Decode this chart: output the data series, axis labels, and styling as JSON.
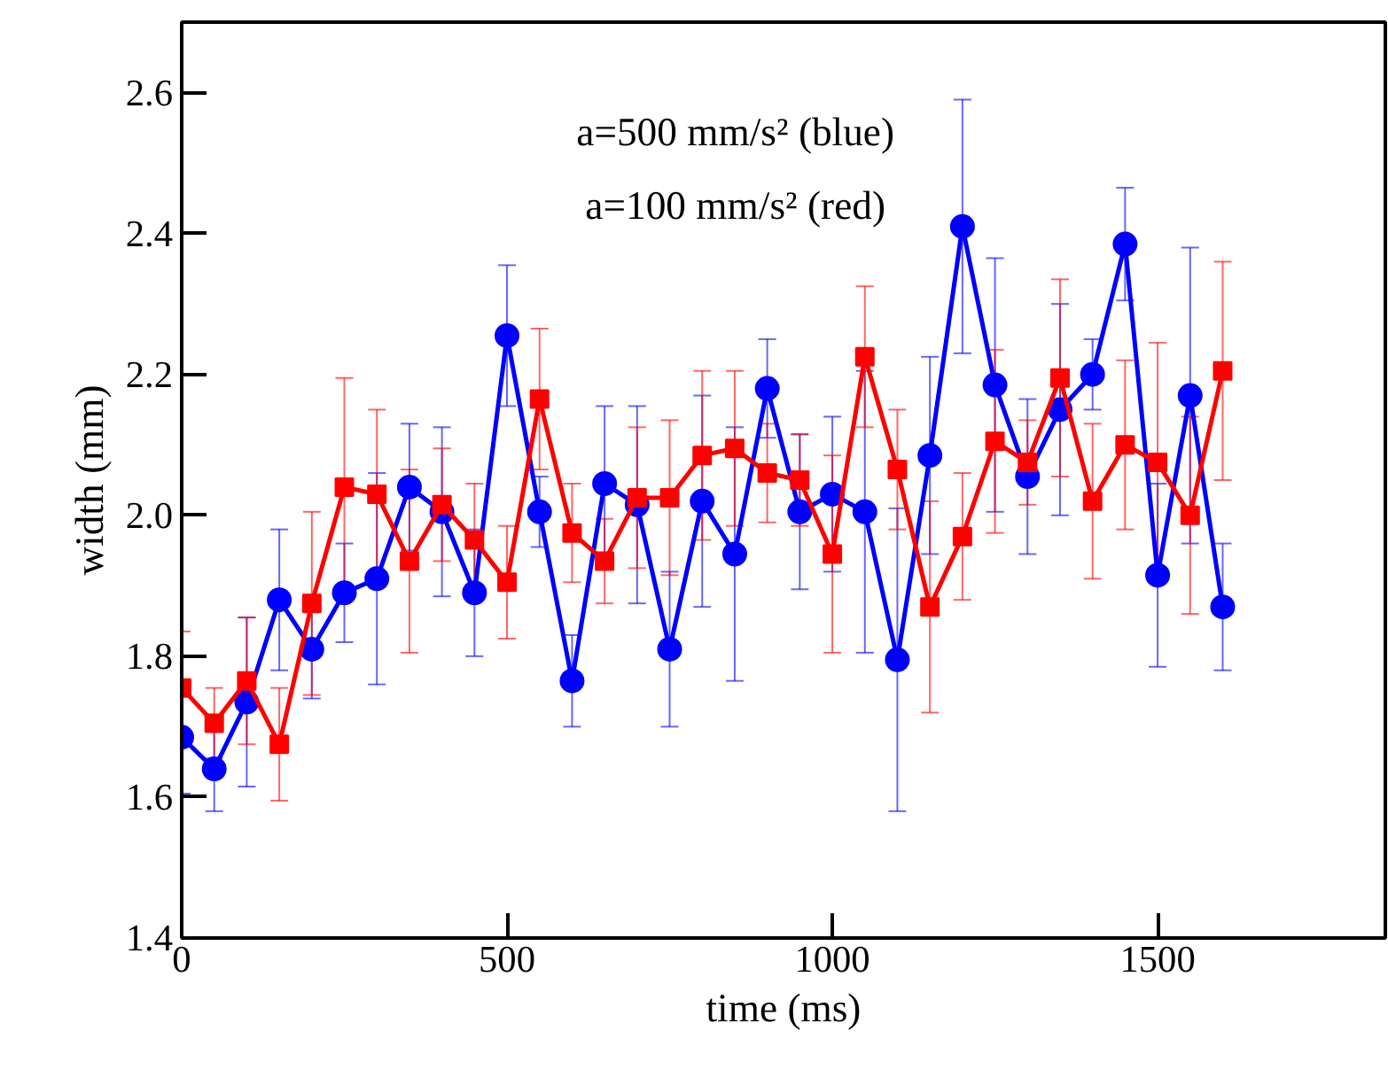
{
  "chart_data": {
    "type": "line",
    "xlabel": "time (ms)",
    "ylabel": "width (mm)",
    "x": [
      0,
      50,
      100,
      150,
      200,
      250,
      300,
      350,
      400,
      450,
      500,
      550,
      600,
      650,
      700,
      750,
      800,
      850,
      900,
      950,
      1000,
      1050,
      1100,
      1150,
      1200,
      1250,
      1300,
      1350,
      1400,
      1450,
      1500,
      1550,
      1600
    ],
    "series": [
      {
        "color": "#0000ff",
        "marker": "circle",
        "values": [
          1.685,
          1.64,
          1.735,
          1.88,
          1.81,
          1.89,
          1.91,
          2.04,
          2.005,
          1.89,
          2.255,
          2.005,
          1.765,
          2.045,
          2.015,
          1.81,
          2.02,
          1.945,
          2.18,
          2.005,
          2.03,
          2.005,
          1.795,
          2.085,
          2.41,
          2.185,
          2.055,
          2.15,
          2.2,
          2.385,
          1.915,
          2.17,
          1.87
        ],
        "errors": [
          0.08,
          0.06,
          0.12,
          0.1,
          0.07,
          0.07,
          0.15,
          0.09,
          0.12,
          0.09,
          0.1,
          0.05,
          0.065,
          0.11,
          0.14,
          0.11,
          0.15,
          0.18,
          0.07,
          0.11,
          0.11,
          0.2,
          0.215,
          0.14,
          0.18,
          0.18,
          0.11,
          0.15,
          0.05,
          0.08,
          0.13,
          0.21,
          0.09
        ]
      },
      {
        "color": "#ff0000",
        "marker": "square",
        "values": [
          1.755,
          1.705,
          1.765,
          1.675,
          1.875,
          2.04,
          2.03,
          1.935,
          2.015,
          1.965,
          1.905,
          2.165,
          1.975,
          1.935,
          2.025,
          2.025,
          2.085,
          2.095,
          2.06,
          2.05,
          1.945,
          2.225,
          2.065,
          1.87,
          1.97,
          2.105,
          2.075,
          2.195,
          2.02,
          2.1,
          2.075,
          2.0,
          2.205
        ],
        "errors": [
          0.08,
          0.05,
          0.09,
          0.08,
          0.13,
          0.155,
          0.12,
          0.13,
          0.08,
          0.08,
          0.08,
          0.1,
          0.07,
          0.06,
          0.1,
          0.11,
          0.12,
          0.11,
          0.07,
          0.065,
          0.14,
          0.1,
          0.085,
          0.15,
          0.09,
          0.13,
          0.06,
          0.14,
          0.11,
          0.12,
          0.17,
          0.14,
          0.155
        ]
      }
    ],
    "xlim": [
      0,
      1850
    ],
    "xticks": [
      0,
      500,
      1000,
      1500
    ],
    "ylim": [
      1.4,
      2.7
    ],
    "yticks": [
      {
        "value": 1.4,
        "label": "1.4"
      },
      {
        "value": 1.6,
        "label": "1.6"
      },
      {
        "value": 1.8,
        "label": "1.8"
      },
      {
        "value": 2.0,
        "label": "2.0"
      },
      {
        "value": 2.2,
        "label": "2.2"
      },
      {
        "value": 2.4,
        "label": "2.4"
      },
      {
        "value": 2.6,
        "label": "2.6"
      }
    ],
    "annotations": [
      "a=500 mm/s² (blue)",
      "a=100 mm/s² (red)"
    ],
    "grid": false,
    "line_style": "solid"
  }
}
